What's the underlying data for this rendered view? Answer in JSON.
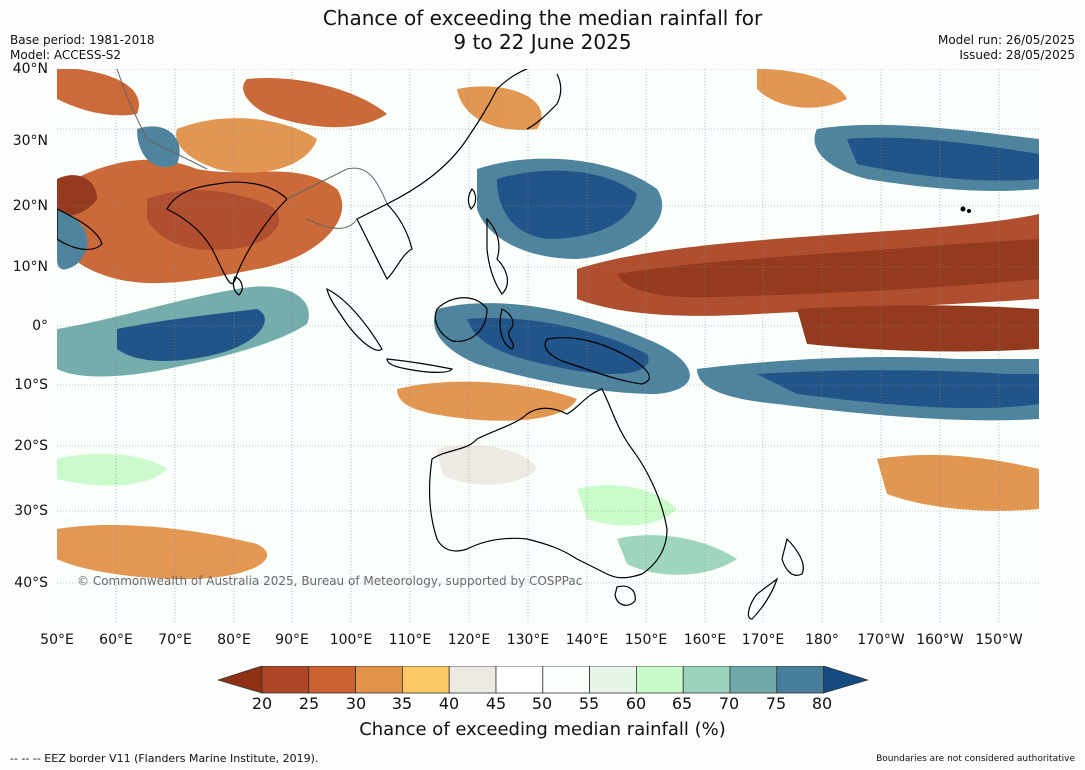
{
  "title_line1": "Chance of exceeding the median rainfall for",
  "title_line2": "9 to 22 June 2025",
  "base_period": "Base period: 1981-2018",
  "model": "Model: ACCESS-S2",
  "model_run": "Model run: 26/05/2025",
  "issued": "Issued: 28/05/2025",
  "copyright": "© Commonwealth of Australia 2025, Bureau of Meteorology, supported by COSPPac",
  "lat_labels": [
    "40°N",
    "30°N",
    "20°N",
    "10°N",
    "0°",
    "10°S",
    "20°S",
    "30°S",
    "40°S"
  ],
  "lon_labels": [
    "50°E",
    "60°E",
    "70°E",
    "80°E",
    "90°E",
    "100°E",
    "110°E",
    "120°E",
    "130°E",
    "140°E",
    "150°E",
    "160°E",
    "170°E",
    "180°",
    "170°W",
    "160°W",
    "150°W"
  ],
  "colorbar": {
    "ticks": [
      "20",
      "25",
      "30",
      "35",
      "40",
      "45",
      "50",
      "55",
      "60",
      "65",
      "70",
      "75",
      "80"
    ],
    "colors": [
      "#8e3014",
      "#ad4626",
      "#c9622f",
      "#e0924a",
      "#fdc965",
      "#ece9e2",
      "#ffffff",
      "#fbfffb",
      "#e7f5e9",
      "#c8fbc9",
      "#9bd2bb",
      "#6ea8a8",
      "#467e9b",
      "#164b82"
    ],
    "title": "Chance of exceeding median rainfall (%)"
  },
  "footer_left": "--  --  -- EEZ border V11 (Flanders Marine Institute, 2019).",
  "footer_right": "Boundaries are not considered authoritative"
}
